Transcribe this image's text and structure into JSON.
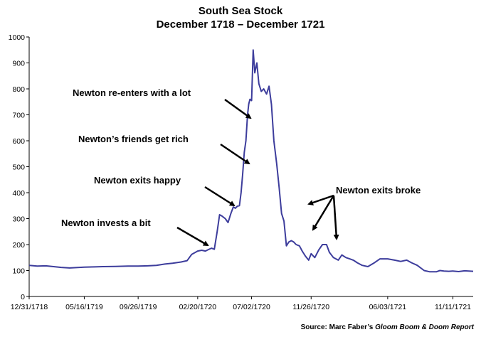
{
  "chart_data": {
    "type": "line",
    "title": "South Sea Stock",
    "subtitle": "December 1718 – December 1721",
    "xlabel": "",
    "ylabel": "",
    "ylim": [
      0,
      1000
    ],
    "yticks": [
      0,
      100,
      200,
      300,
      400,
      500,
      600,
      700,
      800,
      900,
      1000
    ],
    "xlim": [
      "1718-12-31",
      "1721-12-31"
    ],
    "xticks": [
      "12/31/1718",
      "05/16/1719",
      "09/26/1719",
      "02/20/1720",
      "07/02/1720",
      "11/26/1720",
      "06/03/1721",
      "11/11/1721"
    ],
    "grid": false,
    "line_color": "#3d3d9c",
    "series": [
      {
        "x": [
          "1718-12-31",
          "1719-01-20",
          "1719-02-10",
          "1719-03-01",
          "1719-03-20",
          "1719-04-10",
          "1719-05-16",
          "1719-06-10",
          "1719-07-01",
          "1719-08-01",
          "1719-09-01",
          "1719-09-26",
          "1719-10-20",
          "1719-11-10",
          "1719-12-01",
          "1719-12-20",
          "1720-01-10",
          "1720-01-25",
          "1720-02-05",
          "1720-02-20",
          "1720-03-01",
          "1720-03-10",
          "1720-03-18",
          "1720-03-25",
          "1720-04-01",
          "1720-04-08",
          "1720-04-14",
          "1720-04-20",
          "1720-04-28",
          "1720-05-05",
          "1720-05-12",
          "1720-05-18",
          "1720-05-23",
          "1720-05-28",
          "1720-06-02",
          "1720-06-06",
          "1720-06-10",
          "1720-06-14",
          "1720-06-18",
          "1720-06-22",
          "1720-06-25",
          "1720-06-28",
          "1720-07-02",
          "1720-07-06",
          "1720-07-10",
          "1720-07-15",
          "1720-07-20",
          "1720-07-26",
          "1720-08-01",
          "1720-08-08",
          "1720-08-14",
          "1720-08-20",
          "1720-08-26",
          "1720-09-02",
          "1720-09-08",
          "1720-09-14",
          "1720-09-20",
          "1720-09-26",
          "1720-10-02",
          "1720-10-08",
          "1720-10-14",
          "1720-10-20",
          "1720-10-28",
          "1720-11-04",
          "1720-11-12",
          "1720-11-20",
          "1720-11-26",
          "1720-12-05",
          "1720-12-15",
          "1720-12-24",
          "1721-01-03",
          "1721-01-10",
          "1721-01-20",
          "1721-02-01",
          "1721-02-10",
          "1721-02-20",
          "1721-03-01",
          "1721-03-10",
          "1721-03-20",
          "1721-04-01",
          "1721-04-15",
          "1721-05-01",
          "1721-05-15",
          "1721-06-03",
          "1721-06-20",
          "1721-07-05",
          "1721-07-20",
          "1721-08-01",
          "1721-08-15",
          "1721-09-01",
          "1721-09-15",
          "1721-10-01",
          "1721-10-10",
          "1721-10-20",
          "1721-11-01",
          "1721-11-11",
          "1721-11-25",
          "1721-12-10",
          "1721-12-31"
        ],
        "y": [
          120,
          117,
          118,
          115,
          112,
          110,
          113,
          114,
          115,
          116,
          117,
          117,
          118,
          120,
          125,
          128,
          133,
          138,
          162,
          175,
          178,
          175,
          181,
          186,
          182,
          250,
          315,
          310,
          300,
          285,
          320,
          345,
          340,
          348,
          350,
          400,
          470,
          555,
          600,
          700,
          742,
          760,
          755,
          950,
          862,
          900,
          820,
          790,
          800,
          780,
          810,
          740,
          600,
          510,
          420,
          320,
          290,
          195,
          210,
          215,
          210,
          200,
          195,
          175,
          155,
          140,
          165,
          150,
          180,
          200,
          200,
          170,
          150,
          140,
          160,
          150,
          145,
          140,
          130,
          120,
          115,
          130,
          145,
          145,
          140,
          135,
          140,
          130,
          120,
          100,
          95,
          95,
          100,
          98,
          97,
          98,
          96,
          99,
          97
        ]
      }
    ],
    "annotations": [
      {
        "text": "Newton re-enters with a lot"
      },
      {
        "text": "Newton’s friends get rich"
      },
      {
        "text": "Newton exits happy"
      },
      {
        "text": "Newton invests a bit"
      },
      {
        "text": "Newton exits broke"
      }
    ],
    "source_prefix": "Source: Marc Faber’s ",
    "source_title": "Gloom Boom & Doom Report"
  }
}
